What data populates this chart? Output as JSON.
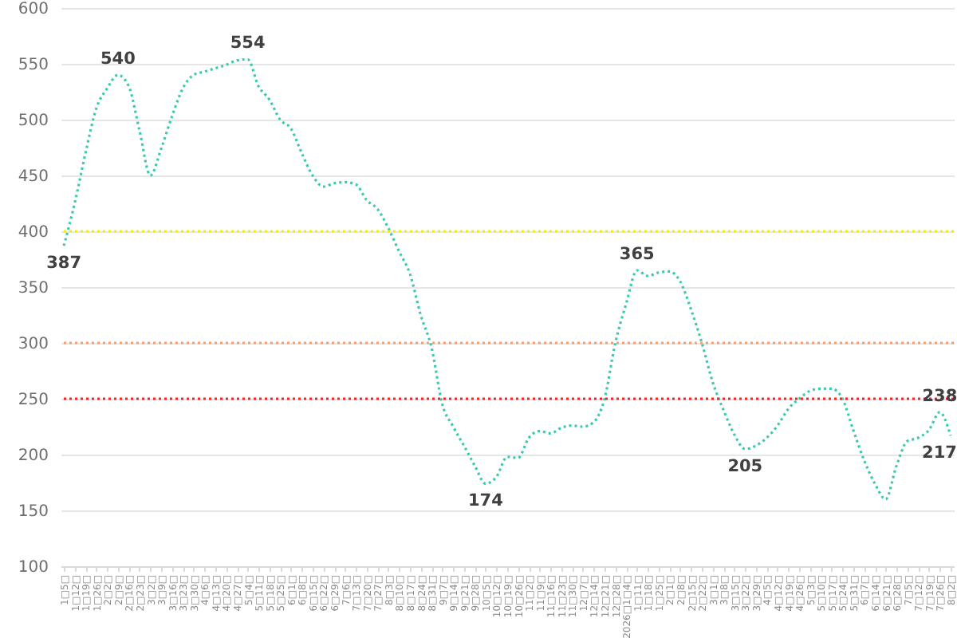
{
  "chart_data": {
    "type": "line",
    "categories": [
      "1□5□",
      "1□12□",
      "1□19□",
      "1□26□",
      "2□2□",
      "2□9□",
      "2□16□",
      "2□23□",
      "3□2□",
      "3□9□",
      "3□16□",
      "3□23□",
      "3□30□",
      "4□6□",
      "4□13□",
      "4□20□",
      "4□27□",
      "5□4□",
      "5□11□",
      "5□18□",
      "5□25□",
      "6□1□",
      "6□8□",
      "6□15□",
      "6□22□",
      "6□29□",
      "7□6□",
      "7□13□",
      "7□20□",
      "7□27□",
      "8□3□",
      "8□10□",
      "8□17□",
      "8□24□",
      "8□31□",
      "9□7□",
      "9□14□",
      "9□21□",
      "9□28□",
      "10□5□",
      "10□12□",
      "10□19□",
      "10□26□",
      "11□2□",
      "11□9□",
      "11□16□",
      "11□23□",
      "11□30□",
      "12□7□",
      "12□14□",
      "12□21□",
      "12□28□",
      "2026□1□4□",
      "1□11□",
      "1□18□",
      "1□25□",
      "2□1□",
      "2□8□",
      "2□15□",
      "2□22□",
      "3□1□",
      "3□8□",
      "3□15□",
      "3□22□",
      "3□29□",
      "4□5□",
      "4□12□",
      "4□19□",
      "4□26□",
      "5□3□",
      "5□10□",
      "5□17□",
      "5□24□",
      "5□31□",
      "6□7□",
      "6□14□",
      "6□21□",
      "6□28□",
      "7□5□",
      "7□12□",
      "7□19□",
      "7□26□",
      "8□2□"
    ],
    "series": [
      {
        "color": "#3cc9b0",
        "values": [
          387,
          425,
          470,
          510,
          528,
          540,
          530,
          490,
          450,
          474,
          503,
          528,
          540,
          543,
          546,
          549,
          553,
          554,
          530,
          518,
          500,
          492,
          470,
          450,
          440,
          443,
          444,
          442,
          428,
          420,
          403,
          382,
          362,
          325,
          296,
          245,
          225,
          208,
          190,
          174,
          180,
          198,
          197,
          215,
          221,
          219,
          224,
          226,
          225,
          229,
          250,
          300,
          335,
          365,
          360,
          363,
          364,
          355,
          330,
          300,
          265,
          240,
          218,
          205,
          208,
          215,
          226,
          241,
          250,
          257,
          259,
          259,
          250,
          222,
          195,
          174,
          160,
          190,
          212,
          215,
          222,
          238,
          217
        ],
        "value_labels": [
          "387",
          null,
          null,
          null,
          null,
          "540",
          null,
          null,
          null,
          null,
          null,
          null,
          null,
          null,
          null,
          null,
          null,
          "554",
          null,
          null,
          null,
          null,
          null,
          null,
          null,
          null,
          null,
          null,
          null,
          null,
          null,
          null,
          null,
          null,
          null,
          null,
          null,
          null,
          null,
          "174",
          null,
          null,
          null,
          null,
          null,
          null,
          null,
          null,
          null,
          null,
          null,
          null,
          null,
          "365",
          null,
          null,
          null,
          null,
          null,
          null,
          null,
          null,
          null,
          "205",
          null,
          null,
          null,
          null,
          null,
          null,
          null,
          null,
          null,
          null,
          null,
          null,
          null,
          null,
          null,
          null,
          null,
          "238",
          "217"
        ]
      }
    ],
    "ylim": [
      100,
      600
    ],
    "yticks": [
      100,
      150,
      200,
      250,
      300,
      350,
      400,
      450,
      500,
      550,
      600
    ],
    "grid": "y",
    "line_style": "dotted",
    "ref_lines": [
      {
        "axis": "y",
        "value": 400,
        "color": "#f0f000",
        "line_style": "dotted"
      },
      {
        "axis": "y",
        "value": 300,
        "color": "#f5a070",
        "line_style": "dotted"
      },
      {
        "axis": "y",
        "value": 250,
        "color": "#ff2020",
        "line_style": "dotted"
      }
    ]
  }
}
